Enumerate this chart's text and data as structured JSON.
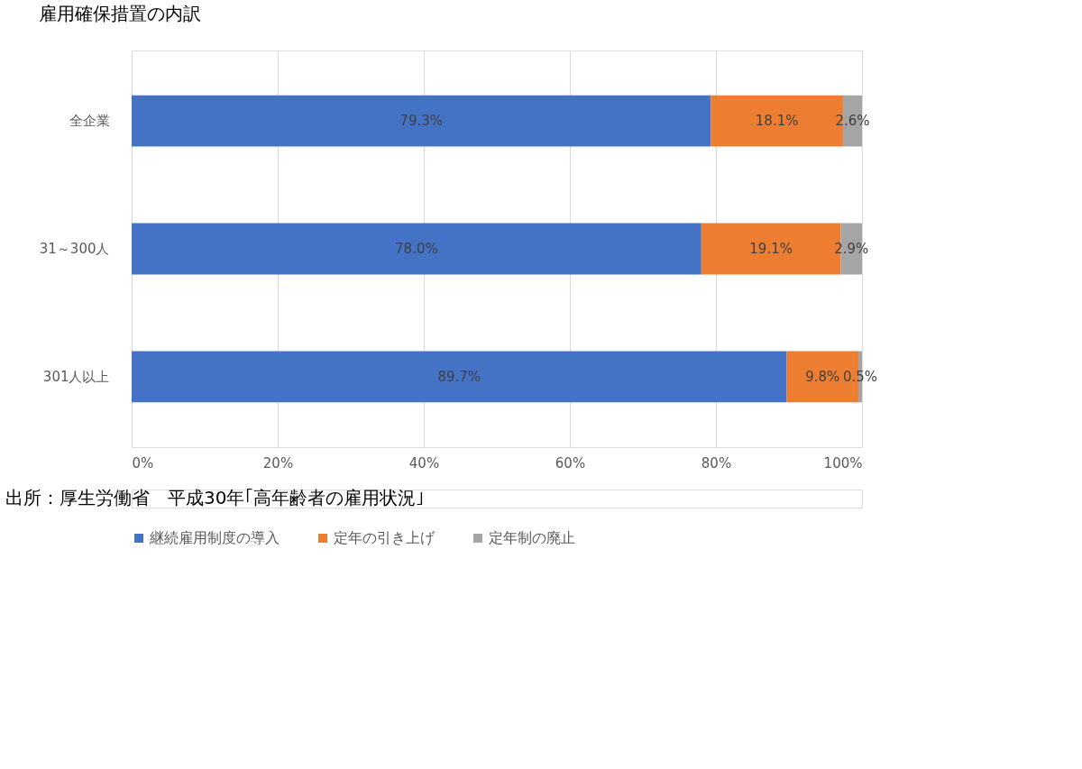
{
  "chart_data": {
    "type": "bar",
    "orientation": "horizontal",
    "stacked": true,
    "title": "雇用確保措置の内訳",
    "categories": [
      "全企業",
      "31～300人",
      "301人以上"
    ],
    "series": [
      {
        "name": "継続雇用制度の導入",
        "color": "#4472c4",
        "values": [
          79.3,
          78.0,
          89.7
        ],
        "value_labels": [
          "79.3%",
          "78.0%",
          "89.7%"
        ]
      },
      {
        "name": "定年の引き上げ",
        "color": "#ed7d31",
        "values": [
          18.1,
          19.1,
          9.8
        ],
        "value_labels": [
          "18.1%",
          "19.1%",
          "9.8%"
        ]
      },
      {
        "name": "定年制の廃止",
        "color": "#a5a5a5",
        "values": [
          2.6,
          2.9,
          0.5
        ],
        "value_labels": [
          "2.6%",
          "2.9%",
          "0.5%"
        ]
      }
    ],
    "xlim": [
      0,
      100
    ],
    "xticks": [
      {
        "value": 0,
        "label": "0%"
      },
      {
        "value": 20,
        "label": "20%"
      },
      {
        "value": 40,
        "label": "40%"
      },
      {
        "value": 60,
        "label": "60%"
      },
      {
        "value": 80,
        "label": "80%"
      },
      {
        "value": 100,
        "label": "100%"
      }
    ],
    "grid": "x",
    "legend": "bottom",
    "annotations": [
      "出所：厚生労働省　平成30年｢高年齢者の雇用状況｣"
    ]
  }
}
